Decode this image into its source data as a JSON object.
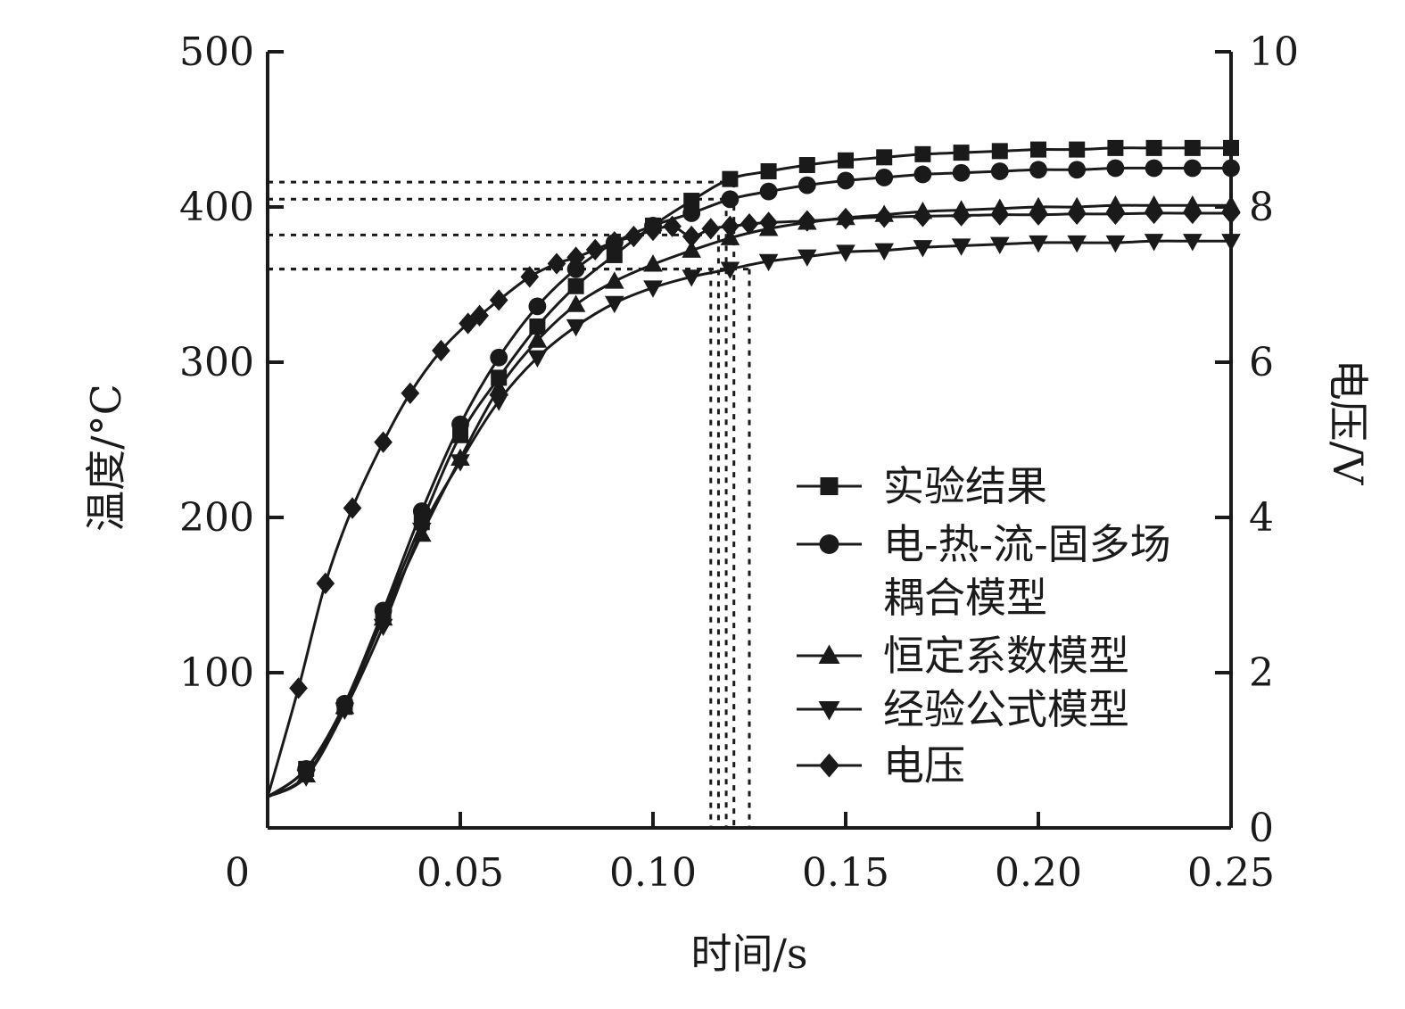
{
  "chart_data": {
    "type": "line",
    "xlabel": "时间/s",
    "ylabel_left": "温度/°C",
    "ylabel_right": "电压/V",
    "xlim": [
      0,
      0.25
    ],
    "ylim_left": [
      0,
      500
    ],
    "ylim_right": [
      0,
      10
    ],
    "x_ticks": [
      0,
      0.05,
      0.1,
      0.15,
      0.2,
      0.25
    ],
    "x_tick_labels": [
      "0",
      "0.05",
      "0.10",
      "0.15",
      "0.20",
      "0.25"
    ],
    "y_left_ticks": [
      100,
      200,
      300,
      400,
      500
    ],
    "y_left_tick_labels": [
      "100",
      "200",
      "300",
      "400",
      "500"
    ],
    "y_right_ticks": [
      0,
      2,
      4,
      6,
      8,
      10
    ],
    "y_right_tick_labels": [
      "0",
      "2",
      "4",
      "6",
      "8",
      "10"
    ],
    "grid": false,
    "legend_position": "center-right",
    "series": [
      {
        "name": "实验结果",
        "marker": "square",
        "axis": "left",
        "x": [
          0,
          0.01,
          0.02,
          0.03,
          0.04,
          0.05,
          0.06,
          0.07,
          0.08,
          0.09,
          0.1,
          0.11,
          0.12,
          0.13,
          0.14,
          0.15,
          0.16,
          0.17,
          0.18,
          0.19,
          0.2,
          0.21,
          0.22,
          0.23,
          0.24,
          0.25
        ],
        "values": [
          20,
          38,
          78,
          137,
          197,
          253,
          290,
          323,
          349,
          369,
          388,
          404,
          418,
          423,
          427,
          430,
          432,
          434,
          435,
          436,
          437,
          437,
          438,
          438,
          438,
          438
        ]
      },
      {
        "name": "电-热-流-固多场耦合模型",
        "marker": "circle",
        "axis": "left",
        "x": [
          0,
          0.01,
          0.02,
          0.03,
          0.04,
          0.05,
          0.06,
          0.07,
          0.08,
          0.09,
          0.1,
          0.11,
          0.12,
          0.13,
          0.14,
          0.15,
          0.16,
          0.17,
          0.18,
          0.19,
          0.2,
          0.21,
          0.22,
          0.23,
          0.24,
          0.25
        ],
        "values": [
          20,
          38,
          80,
          140,
          204,
          260,
          303,
          336,
          360,
          377,
          388,
          396,
          405,
          410,
          414,
          417,
          419,
          421,
          422,
          423,
          424,
          424,
          425,
          425,
          425,
          425
        ]
      },
      {
        "name": "恒定系数模型",
        "marker": "triangle-up",
        "axis": "left",
        "x": [
          0,
          0.01,
          0.02,
          0.03,
          0.04,
          0.05,
          0.06,
          0.07,
          0.08,
          0.09,
          0.1,
          0.11,
          0.12,
          0.13,
          0.14,
          0.15,
          0.16,
          0.17,
          0.18,
          0.19,
          0.2,
          0.21,
          0.22,
          0.23,
          0.24,
          0.25
        ],
        "values": [
          20,
          34,
          78,
          135,
          189,
          238,
          283,
          314,
          337,
          352,
          363,
          372,
          380,
          386,
          390,
          393,
          395,
          397,
          398,
          399,
          400,
          400,
          401,
          401,
          401,
          401
        ]
      },
      {
        "name": "经验公式模型",
        "marker": "triangle-down",
        "axis": "left",
        "x": [
          0,
          0.01,
          0.02,
          0.03,
          0.04,
          0.05,
          0.06,
          0.07,
          0.08,
          0.09,
          0.1,
          0.11,
          0.12,
          0.13,
          0.14,
          0.15,
          0.16,
          0.17,
          0.18,
          0.19,
          0.2,
          0.21,
          0.22,
          0.23,
          0.24,
          0.25
        ],
        "values": [
          20,
          33,
          76,
          130,
          192,
          236,
          275,
          303,
          323,
          338,
          348,
          355,
          360,
          365,
          368,
          371,
          372,
          374,
          375,
          376,
          377,
          377,
          377,
          378,
          378,
          378
        ]
      },
      {
        "name": "电压",
        "marker": "diamond",
        "axis": "right",
        "x": [
          0,
          0.008,
          0.015,
          0.022,
          0.03,
          0.037,
          0.045,
          0.052,
          0.055,
          0.06,
          0.068,
          0.075,
          0.08,
          0.085,
          0.09,
          0.095,
          0.1,
          0.105,
          0.11,
          0.115,
          0.12,
          0.125,
          0.13,
          0.14,
          0.15,
          0.16,
          0.17,
          0.18,
          0.19,
          0.2,
          0.21,
          0.22,
          0.23,
          0.24,
          0.25
        ],
        "values": [
          0.4,
          1.8,
          3.15,
          4.12,
          4.97,
          5.6,
          6.15,
          6.5,
          6.6,
          6.8,
          7.1,
          7.27,
          7.35,
          7.45,
          7.55,
          7.62,
          7.7,
          7.75,
          7.62,
          7.72,
          7.75,
          7.78,
          7.8,
          7.82,
          7.85,
          7.87,
          7.88,
          7.89,
          7.9,
          7.9,
          7.91,
          7.91,
          7.92,
          7.92,
          7.92
        ]
      }
    ],
    "guide_lines": [
      {
        "x": 0.115,
        "y": 360
      },
      {
        "x": 0.117,
        "y": 382
      },
      {
        "x": 0.119,
        "y": 405
      },
      {
        "x": 0.121,
        "y": 416
      },
      {
        "x": 0.125,
        "y": 360
      }
    ]
  }
}
